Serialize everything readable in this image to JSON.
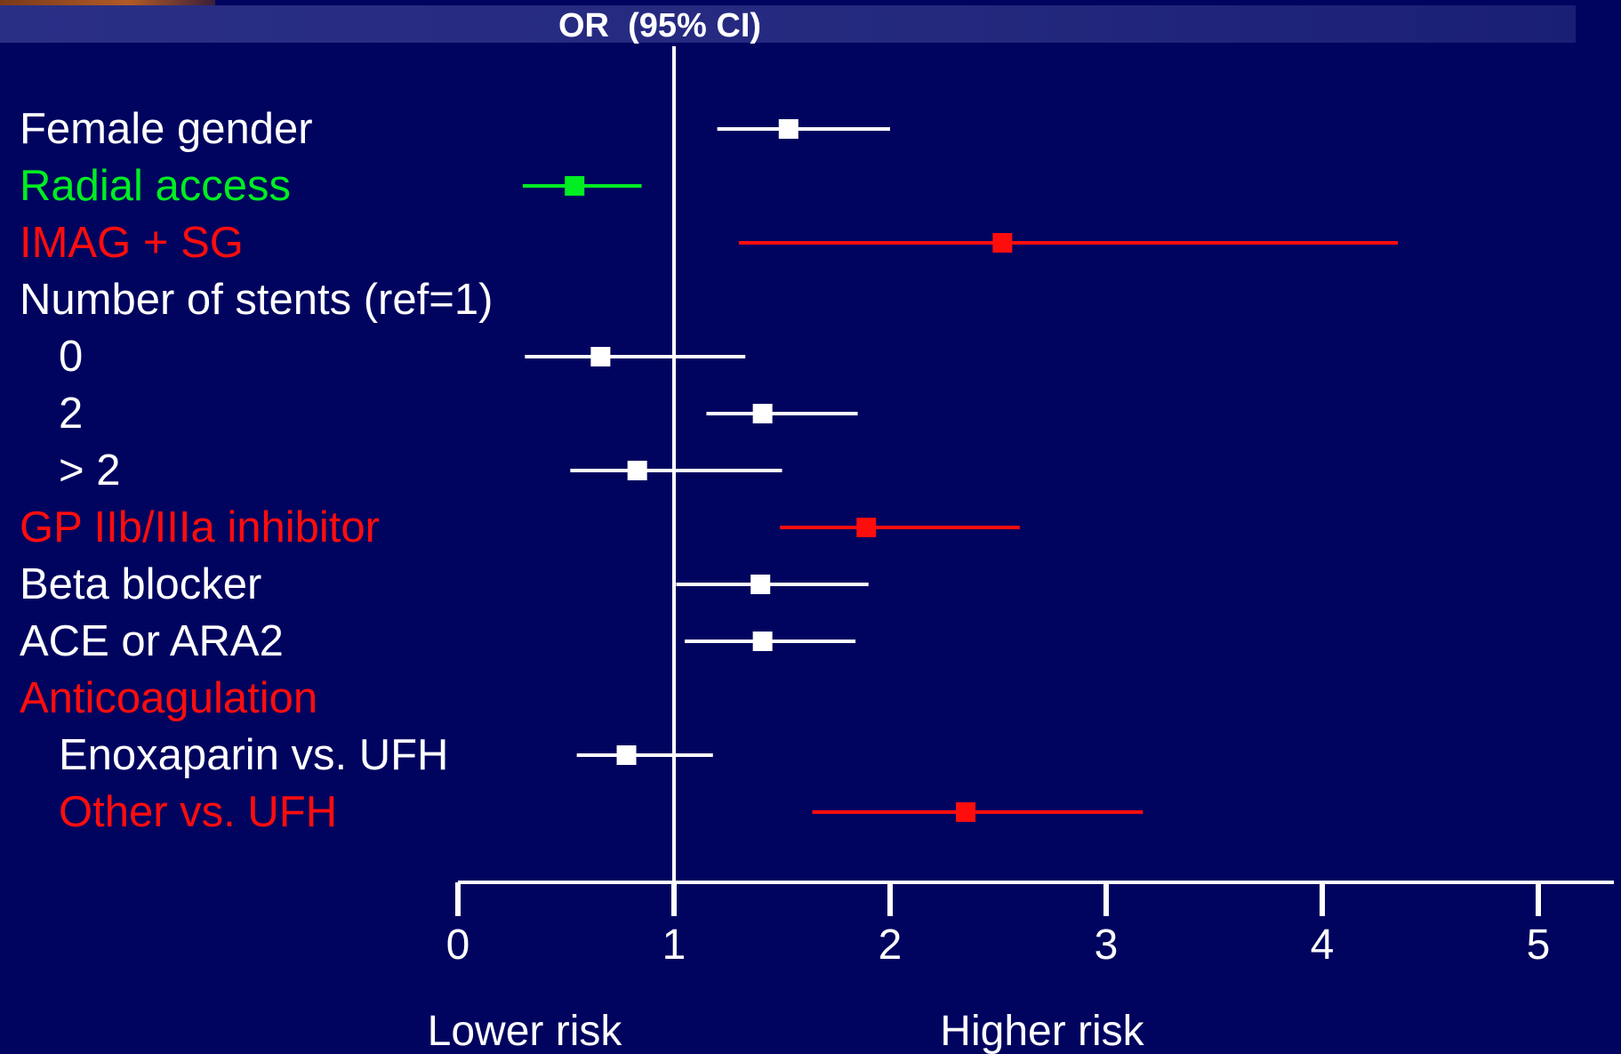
{
  "colors": {
    "background": "#00045f",
    "neutral": "#ffffff",
    "protective": "#00ee22",
    "risk": "#ff0d0d"
  },
  "chart_data": {
    "type": "forest",
    "title": "OR  (95% CI)",
    "xlabel_left": "Lower risk",
    "xlabel_right": "Higher risk",
    "reference_line": 1,
    "xlim": [
      0,
      5
    ],
    "xticks": [
      "0",
      "1",
      "2",
      "3",
      "4",
      "5"
    ],
    "grid": false,
    "rows": [
      {
        "label": "Female gender",
        "indent": false,
        "color": "white",
        "or": 1.53,
        "lo": 1.2,
        "hi": 2.0
      },
      {
        "label": "Radial access",
        "indent": false,
        "color": "green",
        "or": 0.54,
        "lo": 0.3,
        "hi": 0.85
      },
      {
        "label": "IMAG + SG",
        "indent": false,
        "color": "red",
        "or": 2.52,
        "lo": 1.3,
        "hi": 4.35
      },
      {
        "label": "Number of stents (ref=1)",
        "indent": false,
        "color": "white",
        "or": null,
        "lo": null,
        "hi": null
      },
      {
        "label": "0",
        "indent": true,
        "color": "white",
        "or": 0.66,
        "lo": 0.31,
        "hi": 1.33
      },
      {
        "label": "2",
        "indent": true,
        "color": "white",
        "or": 1.41,
        "lo": 1.15,
        "hi": 1.85
      },
      {
        "label": "> 2",
        "indent": true,
        "color": "white",
        "or": 0.83,
        "lo": 0.52,
        "hi": 1.5
      },
      {
        "label": "GP IIb/IIIa inhibitor",
        "indent": false,
        "color": "red",
        "or": 1.89,
        "lo": 1.49,
        "hi": 2.6
      },
      {
        "label": "Beta blocker",
        "indent": false,
        "color": "white",
        "or": 1.4,
        "lo": 1.01,
        "hi": 1.9
      },
      {
        "label": "ACE or ARA2",
        "indent": false,
        "color": "white",
        "or": 1.41,
        "lo": 1.05,
        "hi": 1.84
      },
      {
        "label": "Anticoagulation",
        "indent": false,
        "color": "red",
        "or": null,
        "lo": null,
        "hi": null
      },
      {
        "label": "Enoxaparin vs. UFH",
        "indent": true,
        "color": "white",
        "or": 0.78,
        "lo": 0.55,
        "hi": 1.18
      },
      {
        "label": "Other vs. UFH",
        "indent": true,
        "color": "red",
        "or": 2.35,
        "lo": 1.64,
        "hi": 3.17
      }
    ]
  }
}
